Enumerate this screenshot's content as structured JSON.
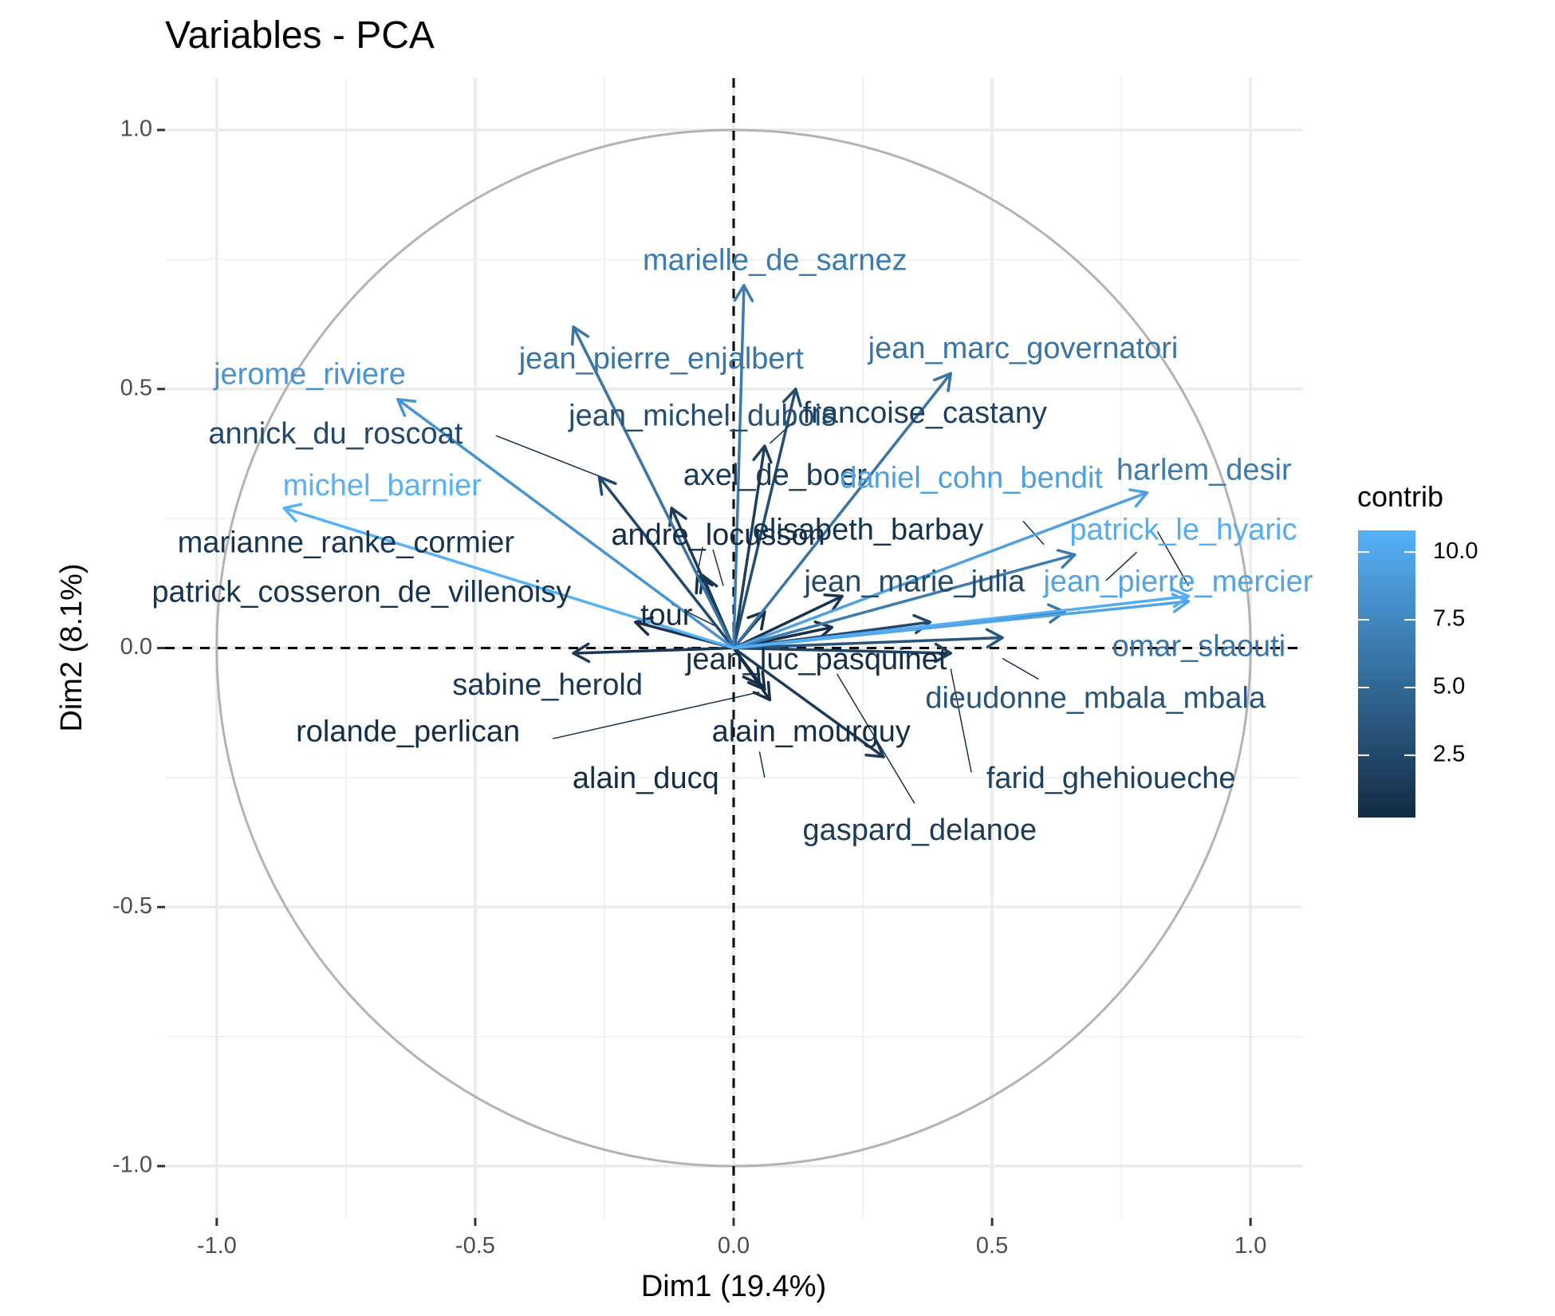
{
  "chart_data": {
    "type": "scatter",
    "subtype": "pca-variable-correlation-circle",
    "title": "Variables - PCA",
    "xlabel": "Dim1 (19.4%)",
    "ylabel": "Dim2 (8.1%)",
    "xlim": [
      -1.1,
      1.1
    ],
    "ylim": [
      -1.1,
      1.1
    ],
    "xticks": [
      -1.0,
      -0.5,
      0.0,
      0.5,
      1.0
    ],
    "xtick_labels": [
      "-1.0",
      "-0.5",
      "0.0",
      "0.5",
      "1.0"
    ],
    "yticks": [
      -1.0,
      -0.5,
      0.0,
      0.5,
      1.0
    ],
    "ytick_labels": [
      "-1.0",
      "-0.5",
      "0.0",
      "0.5",
      "1.0"
    ],
    "grid": true,
    "unit_circle": true,
    "reference_lines": "dashed at x=0 and y=0",
    "legend": {
      "title": "contrib",
      "placement": "right",
      "ticks": [
        2.5,
        5.0,
        7.5,
        10.0
      ],
      "tick_labels": [
        "2.5",
        "5.0",
        "7.5",
        "10.0"
      ],
      "range": [
        0.2,
        10.8
      ],
      "color_low": "#132B43",
      "color_high": "#56B1F7"
    },
    "variables": [
      {
        "name": "marielle_de_sarnez",
        "x": 0.02,
        "y": 0.7,
        "contrib": 6.5
      },
      {
        "name": "jean_pierre_enjalbert",
        "x": -0.31,
        "y": 0.62,
        "contrib": 6.0
      },
      {
        "name": "jerome_riviere",
        "x": -0.65,
        "y": 0.48,
        "contrib": 8.5
      },
      {
        "name": "annick_du_roscoat",
        "x": -0.26,
        "y": 0.33,
        "contrib": 2.5
      },
      {
        "name": "michel_barnier",
        "x": -0.87,
        "y": 0.27,
        "contrib": 10.8
      },
      {
        "name": "marianne_ranke_cormier",
        "x": -0.06,
        "y": 0.14,
        "contrib": 1.0
      },
      {
        "name": "patrick_cosseron_de_villenoisy",
        "x": -0.19,
        "y": 0.05,
        "contrib": 0.8
      },
      {
        "name": "sabine_herold",
        "x": -0.31,
        "y": -0.01,
        "contrib": 1.2
      },
      {
        "name": "rolande_perlican",
        "x": 0.05,
        "y": -0.07,
        "contrib": 0.4
      },
      {
        "name": "jean_marc_governatori",
        "x": 0.42,
        "y": 0.53,
        "contrib": 6.0
      },
      {
        "name": "jean_michel_dubois",
        "x": 0.12,
        "y": 0.5,
        "contrib": 3.0
      },
      {
        "name": "francoise_castany",
        "x": 0.06,
        "y": 0.39,
        "contrib": 1.8
      },
      {
        "name": "axel_de_boer",
        "x": -0.12,
        "y": 0.27,
        "contrib": 1.5
      },
      {
        "name": "andre_locusson",
        "x": 0.06,
        "y": 0.07,
        "contrib": 0.3
      },
      {
        "name": "elisabeth_barbay",
        "x": 0.21,
        "y": 0.1,
        "contrib": 0.9
      },
      {
        "name": "daniel_cohn_bendit",
        "x": 0.8,
        "y": 0.3,
        "contrib": 9.5
      },
      {
        "name": "harlem_desir",
        "x": 0.66,
        "y": 0.18,
        "contrib": 6.5
      },
      {
        "name": "patrick_le_hyaric",
        "x": 0.88,
        "y": 0.1,
        "contrib": 10.5
      },
      {
        "name": "jean_marie_julia",
        "x": 0.38,
        "y": 0.05,
        "contrib": 2.5
      },
      {
        "name": "jean_pierre_mercier",
        "x": 0.88,
        "y": 0.09,
        "contrib": 9.8
      },
      {
        "name": "omar_slaouti",
        "x": 0.64,
        "y": 0.07,
        "contrib": 6.0
      },
      {
        "name": "tour",
        "x": -0.07,
        "y": 0.14,
        "contrib": 0.4
      },
      {
        "name": "jean_luc_pasquinet",
        "x": 0.19,
        "y": 0.04,
        "contrib": 0.5
      },
      {
        "name": "dieudonne_mbala_mbala",
        "x": 0.52,
        "y": 0.02,
        "contrib": 3.5
      },
      {
        "name": "farid_ghehioueche",
        "x": 0.42,
        "y": -0.01,
        "contrib": 2.0
      },
      {
        "name": "alain_mourguy",
        "x": 0.07,
        "y": -0.1,
        "contrib": 0.4
      },
      {
        "name": "alain_ducq",
        "x": 0.06,
        "y": -0.08,
        "contrib": 0.3
      },
      {
        "name": "gaspard_delanoe",
        "x": 0.29,
        "y": -0.21,
        "contrib": 1.5
      }
    ],
    "labels": [
      {
        "name": "marielle_de_sarnez",
        "x": 0.08,
        "y": 0.745
      },
      {
        "name": "jean_pierre_enjalbert",
        "x": -0.14,
        "y": 0.555
      },
      {
        "name": "jerome_riviere",
        "x": -0.82,
        "y": 0.525
      },
      {
        "name": "annick_du_roscoat",
        "x": -0.77,
        "y": 0.41
      },
      {
        "name": "michel_barnier",
        "x": -0.68,
        "y": 0.31
      },
      {
        "name": "marianne_ranke_cormier",
        "x": -0.75,
        "y": 0.2
      },
      {
        "name": "patrick_cosseron_de_villenoisy",
        "x": -0.72,
        "y": 0.105
      },
      {
        "name": "sabine_herold",
        "x": -0.36,
        "y": -0.075
      },
      {
        "name": "rolande_perlican",
        "x": -0.63,
        "y": -0.165
      },
      {
        "name": "jean_marc_governatori",
        "x": 0.56,
        "y": 0.575
      },
      {
        "name": "jean_michel_dubois",
        "x": -0.06,
        "y": 0.445
      },
      {
        "name": "francoise_castany",
        "x": 0.37,
        "y": 0.45
      },
      {
        "name": "axel_de_boer",
        "x": 0.08,
        "y": 0.33
      },
      {
        "name": "andre_locusson",
        "x": -0.03,
        "y": 0.215
      },
      {
        "name": "elisabeth_barbay",
        "x": 0.26,
        "y": 0.225
      },
      {
        "name": "daniel_cohn_bendit",
        "x": 0.46,
        "y": 0.325
      },
      {
        "name": "harlem_desir",
        "x": 0.91,
        "y": 0.34
      },
      {
        "name": "patrick_le_hyaric",
        "x": 0.87,
        "y": 0.225
      },
      {
        "name": "jean_marie_julia",
        "x": 0.35,
        "y": 0.125
      },
      {
        "name": "jean_pierre_mercier",
        "x": 0.86,
        "y": 0.125
      },
      {
        "name": "omar_slaouti",
        "x": 0.9,
        "y": 0.0
      },
      {
        "name": "tour",
        "x": -0.13,
        "y": 0.06
      },
      {
        "name": "jean_luc_pasquinet",
        "x": 0.16,
        "y": -0.025
      },
      {
        "name": "dieudonne_mbala_mbala",
        "x": 0.7,
        "y": -0.1
      },
      {
        "name": "farid_ghehioueche",
        "x": 0.73,
        "y": -0.255
      },
      {
        "name": "alain_mourguy",
        "x": 0.15,
        "y": -0.165
      },
      {
        "name": "alain_ducq",
        "x": -0.17,
        "y": -0.255
      },
      {
        "name": "gaspard_delanoe",
        "x": 0.36,
        "y": -0.355
      }
    ],
    "leader_lines": [
      {
        "from": [
          -0.46,
          0.41
        ],
        "to": [
          -0.23,
          0.32
        ]
      },
      {
        "from": [
          -0.06,
          0.195
        ],
        "to": [
          -0.07,
          0.145
        ]
      },
      {
        "from": [
          -0.12,
          0.085
        ],
        "to": [
          -0.03,
          0.04
        ]
      },
      {
        "from": [
          0.07,
          0.395
        ],
        "to": [
          0.12,
          0.44
        ]
      },
      {
        "from": [
          0.56,
          0.245
        ],
        "to": [
          0.6,
          0.2
        ]
      },
      {
        "from": [
          0.82,
          0.225
        ],
        "to": [
          0.88,
          0.12
        ]
      },
      {
        "from": [
          0.78,
          0.185
        ],
        "to": [
          0.72,
          0.13
        ]
      },
      {
        "from": [
          0.52,
          -0.02
        ],
        "to": [
          0.59,
          -0.06
        ]
      },
      {
        "from": [
          0.42,
          -0.04
        ],
        "to": [
          0.46,
          -0.24
        ]
      },
      {
        "from": [
          0.2,
          -0.05
        ],
        "to": [
          0.35,
          -0.3
        ]
      },
      {
        "from": [
          0.05,
          -0.085
        ],
        "to": [
          -0.35,
          -0.175
        ]
      },
      {
        "from": [
          0.05,
          -0.2
        ],
        "to": [
          0.06,
          -0.25
        ]
      },
      {
        "from": [
          -0.04,
          0.19
        ],
        "to": [
          -0.02,
          0.12
        ]
      }
    ]
  }
}
